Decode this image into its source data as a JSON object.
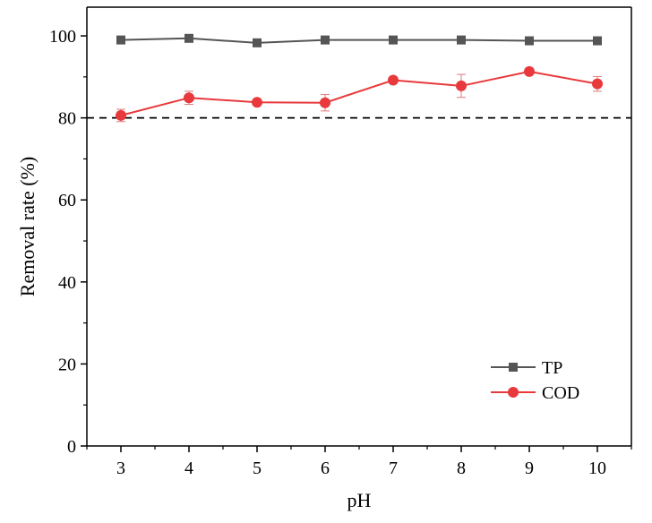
{
  "chart_data": {
    "type": "line",
    "title": "",
    "xlabel": "pH",
    "ylabel": "Removal rate (%)",
    "x": [
      3,
      4,
      5,
      6,
      7,
      8,
      9,
      10
    ],
    "xlim": [
      2.5,
      10.5
    ],
    "ylim": [
      0,
      107
    ],
    "y_ticks": [
      0,
      20,
      40,
      60,
      80,
      100
    ],
    "x_ticks": [
      3,
      4,
      5,
      6,
      7,
      8,
      9,
      10
    ],
    "reference_line": {
      "y": 80,
      "style": "dashed",
      "color": "#000000"
    },
    "legend": {
      "position": "bottom-right"
    },
    "series": [
      {
        "name": "TP",
        "marker": "square",
        "color": "#555555",
        "values": [
          99.0,
          99.4,
          98.3,
          99.0,
          99.0,
          99.0,
          98.8,
          98.8
        ],
        "errors": [
          0.3,
          0.3,
          0.4,
          0.3,
          0.3,
          0.3,
          0.3,
          0.3
        ]
      },
      {
        "name": "COD",
        "marker": "circle",
        "color": "#e8393c",
        "values": [
          80.6,
          84.9,
          83.8,
          83.7,
          89.2,
          87.8,
          91.3,
          88.3
        ],
        "errors": [
          1.5,
          1.6,
          0.6,
          2.0,
          0.5,
          2.8,
          0.6,
          1.8
        ]
      }
    ]
  }
}
